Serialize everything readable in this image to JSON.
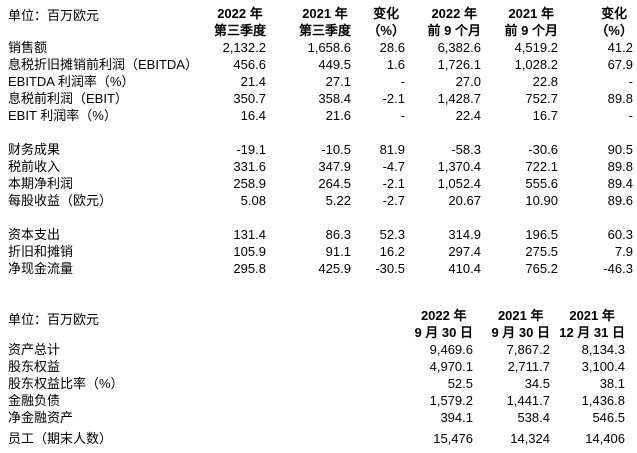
{
  "colors": {
    "text": "#000000",
    "background": "#ffffff"
  },
  "section1": {
    "unit_label": "单位：百万欧元",
    "col_headers": [
      [
        "2022 年",
        "第三季度"
      ],
      [
        "2021 年",
        "第三季度"
      ],
      [
        "变化",
        "（%）"
      ],
      [
        "2022 年",
        "前 9 个月"
      ],
      [
        "2021 年",
        "前 9 个月"
      ],
      [
        "变化",
        "（%）"
      ]
    ],
    "row_groups": [
      {
        "rows": [
          {
            "label": "销售额",
            "values": [
              "2,132.2",
              "1,658.6",
              "28.6",
              "6,382.6",
              "4,519.2",
              "41.2"
            ]
          },
          {
            "label": "息税折旧摊销前利润（EBITDA）",
            "values": [
              "456.6",
              "449.5",
              "1.6",
              "1,726.1",
              "1,028.2",
              "67.9"
            ]
          },
          {
            "label": "EBITDA 利润率（%）",
            "values": [
              "21.4",
              "27.1",
              "-",
              "27.0",
              "22.8",
              "-"
            ]
          },
          {
            "label": "息税前利润（EBIT）",
            "values": [
              "350.7",
              "358.4",
              "-2.1",
              "1,428.7",
              "752.7",
              "89.8"
            ]
          },
          {
            "label": "EBIT 利润率（%）",
            "values": [
              "16.4",
              "21.6",
              "-",
              "22.4",
              "16.7",
              "-"
            ]
          }
        ]
      },
      {
        "rows": [
          {
            "label": "财务成果",
            "values": [
              "-19.1",
              "-10.5",
              "81.9",
              "-58.3",
              "-30.6",
              "90.5"
            ]
          },
          {
            "label": "税前收入",
            "values": [
              "331.6",
              "347.9",
              "-4.7",
              "1,370.4",
              "722.1",
              "89.8"
            ]
          },
          {
            "label": "本期净利润",
            "values": [
              "258.9",
              "264.5",
              "-2.1",
              "1,052.4",
              "555.6",
              "89.4"
            ]
          },
          {
            "label": "每股收益（欧元）",
            "values": [
              "5.08",
              "5.22",
              "-2.7",
              "20.67",
              "10.90",
              "89.6"
            ]
          }
        ]
      },
      {
        "rows": [
          {
            "label": "资本支出",
            "values": [
              "131.4",
              "86.3",
              "52.3",
              "314.9",
              "196.5",
              "60.3"
            ]
          },
          {
            "label": "折旧和摊销",
            "values": [
              "105.9",
              "91.1",
              "16.2",
              "297.4",
              "275.5",
              "7.9"
            ]
          },
          {
            "label": "净现金流量",
            "values": [
              "295.8",
              "425.9",
              "-30.5",
              "410.4",
              "765.2",
              "-46.3"
            ]
          }
        ]
      }
    ]
  },
  "section2": {
    "unit_label": "单位：百万欧元",
    "col_headers": [
      [
        "2022 年",
        "9 月 30 日"
      ],
      [
        "2021 年",
        "9 月 30 日"
      ],
      [
        "2021 年",
        "12 月 31 日"
      ]
    ],
    "row_groups": [
      {
        "rows": [
          {
            "label": "资产总计",
            "values": [
              "9,469.6",
              "7,867.2",
              "8,134.3"
            ]
          },
          {
            "label": "股东权益",
            "values": [
              "4,970.1",
              "2,711.7",
              "3,100.4"
            ]
          },
          {
            "label": "股东权益比率（%）",
            "values": [
              "52.5",
              "34.5",
              "38.1"
            ]
          },
          {
            "label": "金融负债",
            "values": [
              "1,579.2",
              "1,441.7",
              "1,436.8"
            ]
          },
          {
            "label": "净金融资产",
            "values": [
              "394.1",
              "538.4",
              "546.5"
            ]
          }
        ]
      },
      {
        "gap_small": true,
        "rows": [
          {
            "label": "员工（期末人数）",
            "values": [
              "15,476",
              "14,324",
              "14,406"
            ]
          }
        ]
      }
    ]
  }
}
